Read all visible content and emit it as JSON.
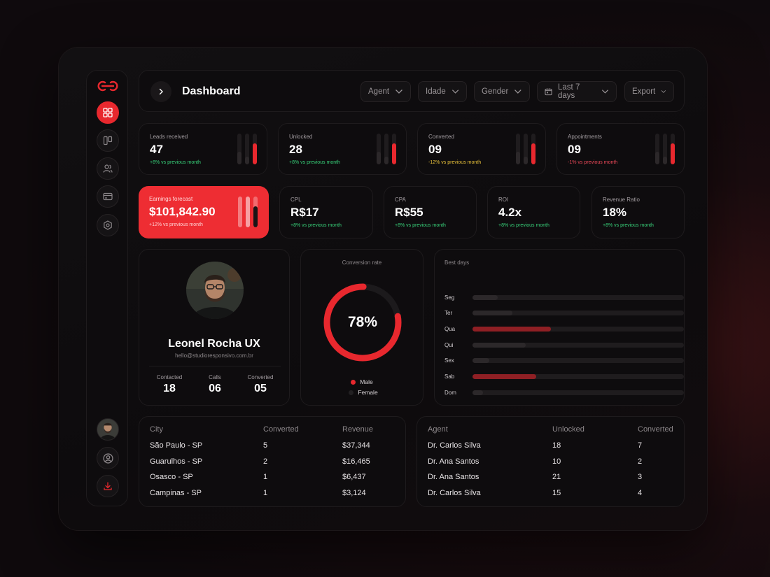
{
  "header": {
    "title": "Dashboard"
  },
  "filters": [
    {
      "label": "Agent"
    },
    {
      "label": "Idade"
    },
    {
      "label": "Gender"
    },
    {
      "label": "Last 7 days"
    },
    {
      "label": "Export"
    }
  ],
  "stats_top": [
    {
      "label": "Leads received",
      "value": "47",
      "delta": "+8% vs previous month",
      "tone": "green",
      "levels": [
        0.4,
        0.9,
        0.6
      ]
    },
    {
      "label": "Unlocked",
      "value": "28",
      "delta": "+8% vs previous month",
      "tone": "green",
      "levels": [
        0.4,
        0.9,
        0.6
      ]
    },
    {
      "label": "Converted",
      "value": "09",
      "delta": "-12% vs previous month",
      "tone": "yellow",
      "levels": [
        0.4,
        0.9,
        0.6
      ]
    },
    {
      "label": "Appointments",
      "value": "09",
      "delta": "-1% vs previous month",
      "tone": "red",
      "levels": [
        0.4,
        0.9,
        0.6
      ]
    }
  ],
  "earnings": {
    "label": "Earnings forecast",
    "value": "$101,842.90",
    "delta": "+12% vs previous month"
  },
  "stats_mid": [
    {
      "label": "CPL",
      "value": "R$17",
      "delta": "+8% vs previous month"
    },
    {
      "label": "CPA",
      "value": "R$55",
      "delta": "+8% vs previous month"
    },
    {
      "label": "ROI",
      "value": "4.2x",
      "delta": "+8% vs previous month"
    },
    {
      "label": "Revenue Ratio",
      "value": "18%",
      "delta": "+8% vs previous month"
    }
  ],
  "profile": {
    "name": "Leonel Rocha UX",
    "email": "hello@studioresponsivo.com.br",
    "stats": [
      {
        "label": "Contacted",
        "value": "18"
      },
      {
        "label": "Calls",
        "value": "06"
      },
      {
        "label": "Converted",
        "value": "05"
      }
    ]
  },
  "conversion": {
    "title": "Conversion rate",
    "value_text": "78%",
    "fraction": 0.78,
    "legend": [
      {
        "label": "Male",
        "color": "#e8282e"
      },
      {
        "label": "Female",
        "color": "#222022"
      }
    ]
  },
  "best_days": {
    "title": "Best days",
    "days": [
      {
        "label": "Seg",
        "value": 0.12,
        "highlight": false
      },
      {
        "label": "Ter",
        "value": 0.19,
        "highlight": false
      },
      {
        "label": "Qua",
        "value": 0.37,
        "highlight": true
      },
      {
        "label": "Qui",
        "value": 0.25,
        "highlight": false
      },
      {
        "label": "Sex",
        "value": 0.08,
        "highlight": false
      },
      {
        "label": "Sab",
        "value": 0.3,
        "highlight": true
      },
      {
        "label": "Dom",
        "value": 0.05,
        "highlight": false
      }
    ]
  },
  "cities": {
    "columns": [
      "City",
      "Converted",
      "Revenue"
    ],
    "rows": [
      [
        "São Paulo - SP",
        "5",
        "$37,344"
      ],
      [
        "Guarulhos - SP",
        "2",
        "$16,465"
      ],
      [
        "Osasco - SP",
        "1",
        "$6,437"
      ],
      [
        "Campinas - SP",
        "1",
        "$3,124"
      ]
    ]
  },
  "agents": {
    "columns": [
      "Agent",
      "Unlocked",
      "Converted"
    ],
    "rows": [
      [
        "Dr. Carlos Silva",
        "18",
        "7"
      ],
      [
        "Dr. Ana Santos",
        "10",
        "2"
      ],
      [
        "Dr. Ana Santos",
        "21",
        "3"
      ],
      [
        "Dr. Carlos Silva",
        "15",
        "4"
      ]
    ]
  },
  "colors": {
    "accent": "#e8282e",
    "positive": "#38d27a",
    "warning": "#e9c23b",
    "negative": "#f04a5a"
  },
  "sidebar": {
    "icons": [
      "grid-icon",
      "columns-icon",
      "users-icon",
      "card-icon",
      "settings-hex-icon"
    ],
    "bottom_icons": [
      "avatar",
      "user-circle-icon",
      "download-icon"
    ]
  }
}
